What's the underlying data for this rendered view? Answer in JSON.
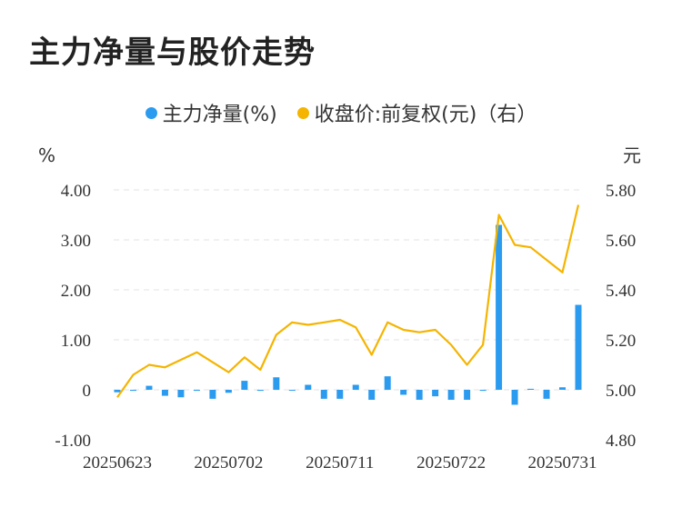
{
  "title": "主力净量与股价走势",
  "legend": [
    {
      "label": "主力净量(%)",
      "color": "#2b9bf0"
    },
    {
      "label": "收盘价:前复权(元)（右）",
      "color": "#f5b400"
    }
  ],
  "chart_data": {
    "type": "bar+line",
    "left_unit": "%",
    "right_unit": "元",
    "y_left": {
      "ticks": [
        "4.00",
        "3.00",
        "2.00",
        "1.00",
        "0",
        "-1.00"
      ],
      "range": [
        -1.0,
        4.0
      ]
    },
    "y_right": {
      "ticks": [
        "5.80",
        "5.60",
        "5.40",
        "5.20",
        "5.00",
        "4.80"
      ],
      "range": [
        4.8,
        5.8
      ]
    },
    "x_ticks": [
      {
        "label": "20250623",
        "index": 0
      },
      {
        "label": "20250702",
        "index": 7
      },
      {
        "label": "20250711",
        "index": 14
      },
      {
        "label": "20250722",
        "index": 21
      },
      {
        "label": "20250731",
        "index": 28
      }
    ],
    "series": [
      {
        "name": "主力净量(%)",
        "kind": "bar",
        "color": "#2b9bf0",
        "values": [
          -0.05,
          -0.02,
          0.08,
          -0.12,
          -0.15,
          -0.02,
          -0.18,
          -0.06,
          0.18,
          -0.02,
          0.25,
          -0.01,
          0.1,
          -0.18,
          -0.18,
          0.1,
          -0.2,
          0.27,
          -0.1,
          -0.2,
          -0.13,
          -0.2,
          -0.2,
          -0.02,
          3.3,
          -0.3,
          0.02,
          -0.18,
          0.05,
          1.7
        ]
      },
      {
        "name": "收盘价:前复权(元)（右）",
        "kind": "line",
        "color": "#f5b400",
        "values": [
          4.97,
          5.06,
          5.1,
          5.09,
          5.12,
          5.15,
          5.11,
          5.07,
          5.13,
          5.08,
          5.22,
          5.27,
          5.26,
          5.27,
          5.28,
          5.25,
          5.14,
          5.27,
          5.24,
          5.23,
          5.24,
          5.18,
          5.1,
          5.18,
          5.7,
          5.58,
          5.57,
          5.52,
          5.47,
          5.74
        ]
      }
    ]
  }
}
